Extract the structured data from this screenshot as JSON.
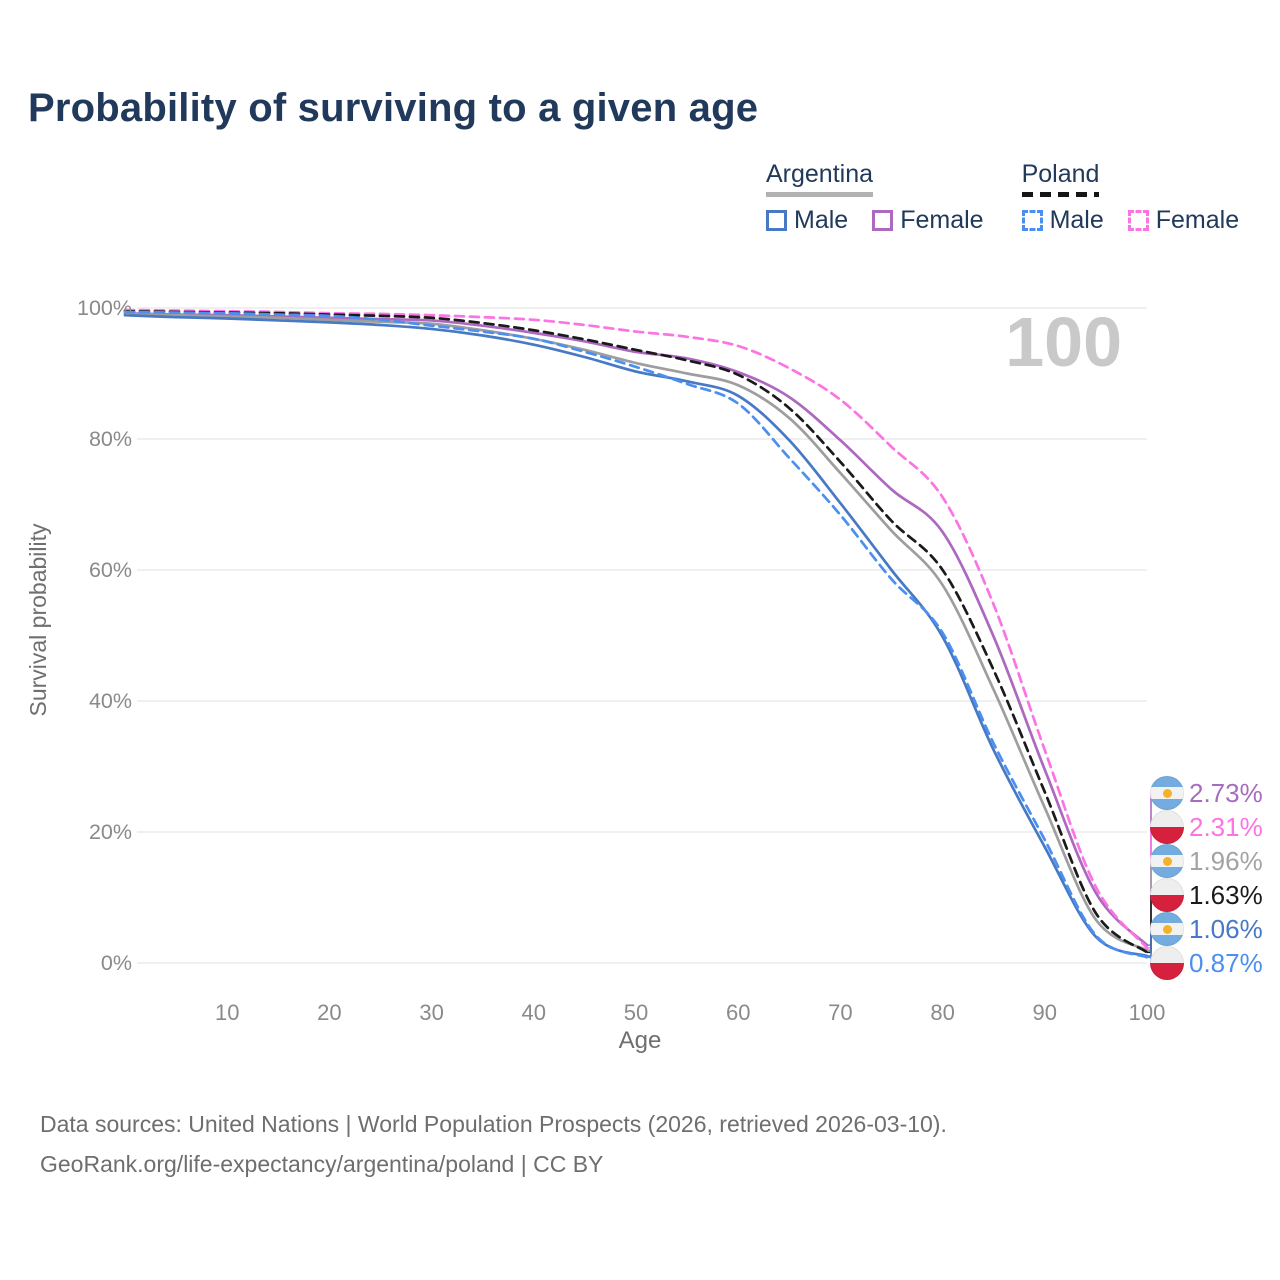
{
  "title": "Probability of surviving to a given age",
  "watermark": "100",
  "legend": {
    "groups": [
      {
        "country": "Argentina",
        "line_style": "solid",
        "underline_color": "#b2b2b2",
        "items": [
          {
            "label": "Male",
            "color": "#4779c4",
            "dash": false
          },
          {
            "label": "Female",
            "color": "#ad68c0",
            "dash": false
          }
        ]
      },
      {
        "country": "Poland",
        "line_style": "dashed",
        "underline_color": "#151515",
        "items": [
          {
            "label": "Male",
            "color": "#4b8ff0",
            "dash": true
          },
          {
            "label": "Female",
            "color": "#fc74e4",
            "dash": true
          }
        ]
      }
    ]
  },
  "axes": {
    "x": {
      "label": "Age",
      "ticks": [
        10,
        20,
        30,
        40,
        50,
        60,
        70,
        80,
        90,
        100
      ],
      "min": 0,
      "max": 100
    },
    "y": {
      "label": "Survival probability",
      "ticks": [
        "0%",
        "20%",
        "40%",
        "60%",
        "80%",
        "100%"
      ],
      "min": 0,
      "max": 100
    }
  },
  "chart_data": {
    "type": "line",
    "title": "Probability of surviving to a given age",
    "xlabel": "Age",
    "ylabel": "Survival probability",
    "xlim": [
      0,
      100
    ],
    "ylim": [
      0,
      100
    ],
    "grid": true,
    "legend_position": "top-right",
    "x": [
      0,
      5,
      10,
      15,
      20,
      25,
      30,
      35,
      40,
      45,
      50,
      55,
      60,
      65,
      70,
      75,
      80,
      85,
      90,
      95,
      100
    ],
    "series": [
      {
        "name": "Argentina Female",
        "country": "argentina",
        "sex": "female",
        "color": "#ad68c0",
        "dash": false,
        "values": [
          99.2,
          99.0,
          98.9,
          98.7,
          98.5,
          98.3,
          98.1,
          97.3,
          96.2,
          94.9,
          93.3,
          92.3,
          90.2,
          86.4,
          79.8,
          72.3,
          65.8,
          49.8,
          29.5,
          10.7,
          2.73
        ],
        "end_label": "2.73%"
      },
      {
        "name": "Poland Female",
        "country": "poland",
        "sex": "female",
        "color": "#fc74e4",
        "dash": true,
        "values": [
          99.7,
          99.6,
          99.5,
          99.4,
          99.2,
          99.1,
          98.9,
          98.6,
          98.2,
          97.4,
          96.4,
          95.6,
          94.2,
          90.8,
          86.0,
          78.8,
          71.1,
          54.7,
          32.5,
          11.6,
          2.31
        ],
        "end_label": "2.31%"
      },
      {
        "name": "Argentina (both sexes)",
        "country": "argentina",
        "sex": "both",
        "color": "#9e9e9e",
        "dash": false,
        "values": [
          99.1,
          98.9,
          98.7,
          98.5,
          98.2,
          97.9,
          97.6,
          96.6,
          95.3,
          93.6,
          91.6,
          90.0,
          88.2,
          83.2,
          74.8,
          66.0,
          57.7,
          41.7,
          23.7,
          6.6,
          1.96
        ],
        "end_label": "1.96%"
      },
      {
        "name": "Poland (both sexes)",
        "country": "poland",
        "sex": "both",
        "color": "#1a1a1a",
        "dash": true,
        "values": [
          99.5,
          99.4,
          99.3,
          99.2,
          99.0,
          98.8,
          98.5,
          97.7,
          96.6,
          95.2,
          93.6,
          92.0,
          89.8,
          84.7,
          76.5,
          67.5,
          60.0,
          44.7,
          26.1,
          7.6,
          1.63
        ],
        "end_label": "1.63%"
      },
      {
        "name": "Argentina Male",
        "country": "argentina",
        "sex": "male",
        "color": "#4779c4",
        "dash": false,
        "values": [
          98.9,
          98.6,
          98.4,
          98.1,
          97.8,
          97.4,
          96.8,
          95.8,
          94.4,
          92.5,
          90.3,
          88.8,
          86.6,
          79.8,
          70.2,
          60.0,
          49.8,
          32.5,
          17.7,
          4.0,
          1.06
        ],
        "end_label": "1.06%"
      },
      {
        "name": "Poland Male",
        "country": "poland",
        "sex": "male",
        "color": "#4b8ff0",
        "dash": true,
        "values": [
          99.4,
          99.3,
          99.2,
          99.0,
          98.8,
          98.2,
          97.3,
          96.4,
          95.3,
          93.3,
          91.0,
          88.4,
          85.4,
          77.1,
          68.4,
          58.6,
          50.4,
          33.5,
          18.8,
          4.2,
          0.87
        ],
        "end_label": "0.87%"
      }
    ]
  },
  "end_labels": [
    {
      "value": "2.73%",
      "flag": "argentina",
      "color": "#a76cc0"
    },
    {
      "value": "2.31%",
      "flag": "poland",
      "color": "#fc74e4"
    },
    {
      "value": "1.96%",
      "flag": "argentina",
      "color": "#a3a3a3"
    },
    {
      "value": "1.63%",
      "flag": "poland",
      "color": "#1a1a1a"
    },
    {
      "value": "1.06%",
      "flag": "argentina",
      "color": "#4779c4"
    },
    {
      "value": "0.87%",
      "flag": "poland",
      "color": "#4b8ff0"
    }
  ],
  "footer": {
    "line1": "Data sources: United Nations | World Population Prospects (2026, retrieved 2026-03-10).",
    "line2": "GeoRank.org/life-expectancy/argentina/poland | CC BY"
  }
}
